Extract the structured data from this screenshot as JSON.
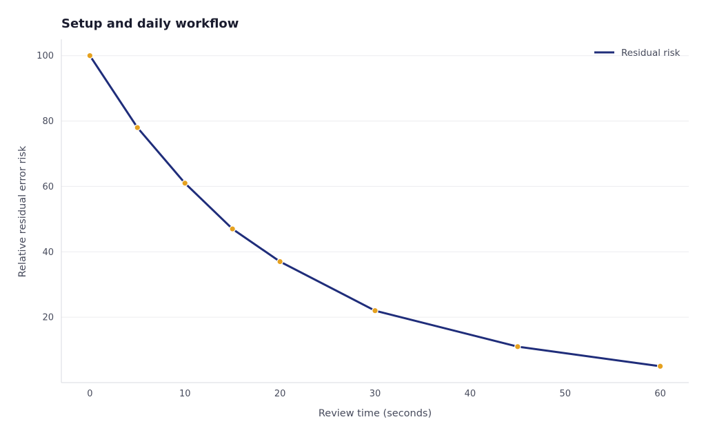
{
  "chart_data": {
    "type": "line",
    "title": "Setup and daily workflow",
    "xlabel": "Review time (seconds)",
    "ylabel": "Relative residual error risk",
    "xlim": [
      -3,
      63
    ],
    "ylim": [
      0,
      105
    ],
    "xticks": [
      0,
      10,
      20,
      30,
      40,
      50,
      60
    ],
    "yticks": [
      20,
      40,
      60,
      80,
      100
    ],
    "grid": "horizontal",
    "legend_position": "top-right",
    "series": [
      {
        "name": "Residual risk",
        "line_color": "#1f2d7a",
        "marker_color": "#e5a11f",
        "x": [
          0,
          5,
          10,
          15,
          20,
          30,
          45,
          60
        ],
        "y": [
          100,
          78,
          61,
          47,
          37,
          22,
          11,
          5
        ]
      }
    ]
  },
  "colors": {
    "grid": "#ececef",
    "axis": "#d9dbe0",
    "text": "#474b5c",
    "title": "#1a1c2e"
  }
}
